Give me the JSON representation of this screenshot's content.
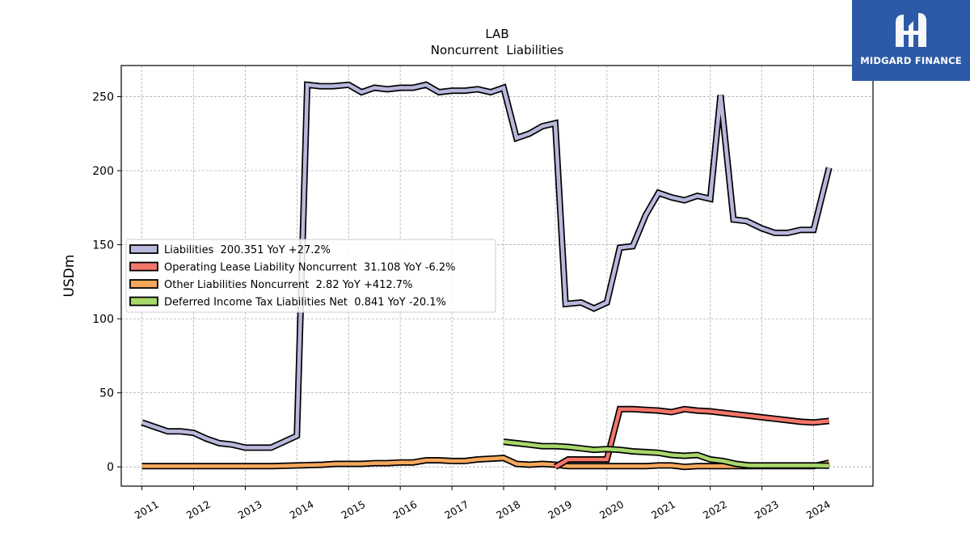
{
  "brand": {
    "name": "MIDGARD FINANCE",
    "color": "#2d5aa6"
  },
  "chart_data": {
    "type": "line",
    "title": "LAB",
    "subtitle": "Noncurrent  Liabilities",
    "xlabel": "",
    "ylabel": "USDm",
    "xlim": [
      2010.6,
      2025.15
    ],
    "ylim": [
      -13,
      271
    ],
    "x_ticks": [
      2011,
      2012,
      2013,
      2014,
      2015,
      2016,
      2017,
      2018,
      2019,
      2020,
      2021,
      2022,
      2023,
      2024
    ],
    "x_tick_labels": [
      "2011",
      "2012",
      "2013",
      "2014",
      "2015",
      "2016",
      "2017",
      "2018",
      "2019",
      "2020",
      "2021",
      "2022",
      "2023",
      "2024"
    ],
    "y_ticks": [
      0,
      50,
      100,
      150,
      200,
      250
    ],
    "y_tick_labels": [
      "0",
      "50",
      "100",
      "150",
      "200",
      "250"
    ],
    "grid": true,
    "legend_position": "center-left",
    "series": [
      {
        "name": "Liabilities",
        "legend_label": "Liabilities  200.351 YoY +27.2%",
        "color": "#b8b8de",
        "points": [
          [
            2011.0,
            30
          ],
          [
            2011.25,
            27
          ],
          [
            2011.5,
            24
          ],
          [
            2011.75,
            24
          ],
          [
            2012.0,
            23
          ],
          [
            2012.25,
            19
          ],
          [
            2012.5,
            16
          ],
          [
            2012.75,
            15
          ],
          [
            2013.0,
            13
          ],
          [
            2013.25,
            13
          ],
          [
            2013.5,
            13
          ],
          [
            2013.75,
            17
          ],
          [
            2014.0,
            21
          ],
          [
            2014.2,
            258
          ],
          [
            2014.45,
            257
          ],
          [
            2014.7,
            257
          ],
          [
            2015.0,
            258
          ],
          [
            2015.25,
            253
          ],
          [
            2015.5,
            256
          ],
          [
            2015.75,
            255
          ],
          [
            2016.0,
            256
          ],
          [
            2016.25,
            256
          ],
          [
            2016.5,
            258
          ],
          [
            2016.75,
            253
          ],
          [
            2017.0,
            254
          ],
          [
            2017.25,
            254
          ],
          [
            2017.5,
            255
          ],
          [
            2017.75,
            253
          ],
          [
            2018.0,
            256
          ],
          [
            2018.25,
            222
          ],
          [
            2018.5,
            225
          ],
          [
            2018.75,
            230
          ],
          [
            2019.0,
            232
          ],
          [
            2019.2,
            110
          ],
          [
            2019.5,
            111
          ],
          [
            2019.75,
            107
          ],
          [
            2020.0,
            111
          ],
          [
            2020.25,
            148
          ],
          [
            2020.5,
            149
          ],
          [
            2020.75,
            170
          ],
          [
            2021.0,
            185
          ],
          [
            2021.25,
            182
          ],
          [
            2021.5,
            180
          ],
          [
            2021.75,
            183
          ],
          [
            2022.0,
            181
          ],
          [
            2022.2,
            251
          ],
          [
            2022.45,
            167
          ],
          [
            2022.7,
            166
          ],
          [
            2023.0,
            161
          ],
          [
            2023.25,
            158
          ],
          [
            2023.5,
            158
          ],
          [
            2023.75,
            160
          ],
          [
            2024.0,
            160
          ],
          [
            2024.3,
            202
          ]
        ]
      },
      {
        "name": "Operating Lease Liability Noncurrent",
        "legend_label": "Operating Lease Liability Noncurrent  31.108 YoY -6.2%",
        "color": "#f4756a",
        "points": [
          [
            2019.0,
            0
          ],
          [
            2019.25,
            5
          ],
          [
            2019.5,
            5
          ],
          [
            2019.75,
            5
          ],
          [
            2020.0,
            5
          ],
          [
            2020.25,
            39
          ],
          [
            2020.5,
            39
          ],
          [
            2020.75,
            38.5
          ],
          [
            2021.0,
            38
          ],
          [
            2021.25,
            37
          ],
          [
            2021.5,
            39
          ],
          [
            2021.75,
            38
          ],
          [
            2022.0,
            37.5
          ],
          [
            2022.25,
            36.5
          ],
          [
            2022.5,
            35.5
          ],
          [
            2022.75,
            34.5
          ],
          [
            2023.0,
            33.5
          ],
          [
            2023.25,
            32.5
          ],
          [
            2023.5,
            31.5
          ],
          [
            2023.75,
            30.5
          ],
          [
            2024.0,
            30
          ],
          [
            2024.3,
            31
          ]
        ]
      },
      {
        "name": "Other Liabilities Noncurrent",
        "legend_label": "Other Liabilities Noncurrent  2.82 YoY +412.7%",
        "color": "#f5a85c",
        "points": [
          [
            2011.0,
            0.5
          ],
          [
            2011.5,
            0.5
          ],
          [
            2012.0,
            0.5
          ],
          [
            2012.5,
            0.5
          ],
          [
            2013.0,
            0.5
          ],
          [
            2013.5,
            0.5
          ],
          [
            2014.0,
            1
          ],
          [
            2014.5,
            1.5
          ],
          [
            2014.75,
            2
          ],
          [
            2015.0,
            2
          ],
          [
            2015.25,
            2
          ],
          [
            2015.5,
            2.5
          ],
          [
            2015.75,
            2.5
          ],
          [
            2016.0,
            3
          ],
          [
            2016.25,
            3
          ],
          [
            2016.5,
            4.5
          ],
          [
            2016.75,
            4.5
          ],
          [
            2017.0,
            4
          ],
          [
            2017.25,
            4
          ],
          [
            2017.5,
            5
          ],
          [
            2017.75,
            5.5
          ],
          [
            2018.0,
            6
          ],
          [
            2018.25,
            2
          ],
          [
            2018.5,
            1.5
          ],
          [
            2018.75,
            2
          ],
          [
            2019.0,
            1.5
          ],
          [
            2019.25,
            0.5
          ],
          [
            2019.5,
            0.5
          ],
          [
            2019.75,
            0.5
          ],
          [
            2020.0,
            0.5
          ],
          [
            2020.5,
            0.5
          ],
          [
            2020.75,
            0.5
          ],
          [
            2021.0,
            1
          ],
          [
            2021.25,
            1
          ],
          [
            2021.5,
            0
          ],
          [
            2021.75,
            0.5
          ],
          [
            2022.0,
            0.5
          ],
          [
            2022.5,
            0.5
          ],
          [
            2023.0,
            0.5
          ],
          [
            2023.5,
            0.5
          ],
          [
            2024.0,
            0.5
          ],
          [
            2024.3,
            2.8
          ]
        ]
      },
      {
        "name": "Deferred Income Tax Liabilities Net",
        "legend_label": "Deferred Income Tax Liabilities Net  0.841 YoY -20.1%",
        "color": "#a8d86a",
        "points": [
          [
            2018.0,
            17
          ],
          [
            2018.25,
            16
          ],
          [
            2018.5,
            15
          ],
          [
            2018.75,
            14
          ],
          [
            2019.0,
            14
          ],
          [
            2019.25,
            13.5
          ],
          [
            2019.5,
            12.5
          ],
          [
            2019.75,
            11.5
          ],
          [
            2020.0,
            12
          ],
          [
            2020.25,
            11.5
          ],
          [
            2020.5,
            10.5
          ],
          [
            2020.75,
            10
          ],
          [
            2021.0,
            9.5
          ],
          [
            2021.25,
            8
          ],
          [
            2021.5,
            7.5
          ],
          [
            2021.75,
            8
          ],
          [
            2022.0,
            5
          ],
          [
            2022.25,
            4
          ],
          [
            2022.5,
            2
          ],
          [
            2022.75,
            1
          ],
          [
            2023.0,
            1
          ],
          [
            2023.5,
            1
          ],
          [
            2024.0,
            1
          ],
          [
            2024.3,
            0.8
          ]
        ]
      }
    ]
  }
}
